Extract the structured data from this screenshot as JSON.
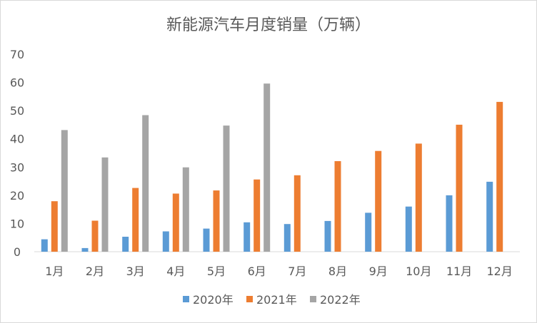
{
  "chart_data": {
    "type": "bar",
    "title": "新能源汽车月度销量（万辆）",
    "xlabel": "",
    "ylabel": "",
    "ylim": [
      0,
      70
    ],
    "yticks": [
      0,
      10,
      20,
      30,
      40,
      50,
      60,
      70
    ],
    "categories": [
      "1月",
      "2月",
      "3月",
      "4月",
      "5月",
      "6月",
      "7月",
      "8月",
      "9月",
      "10月",
      "11月",
      "12月"
    ],
    "series": [
      {
        "name": "2020年",
        "color": "#5b9bd5",
        "values": [
          4.4,
          1.3,
          5.3,
          7.2,
          8.2,
          10.4,
          9.8,
          10.9,
          13.8,
          16.0,
          20.0,
          24.8
        ]
      },
      {
        "name": "2021年",
        "color": "#ed7d31",
        "values": [
          17.9,
          11.0,
          22.6,
          20.6,
          21.7,
          25.6,
          27.1,
          32.1,
          35.7,
          38.3,
          45.0,
          53.1
        ]
      },
      {
        "name": "2022年",
        "color": "#a5a5a5",
        "values": [
          43.1,
          33.4,
          48.4,
          29.9,
          44.7,
          59.6,
          null,
          null,
          null,
          null,
          null,
          null
        ]
      }
    ],
    "grid": false,
    "legend_position": "bottom"
  }
}
